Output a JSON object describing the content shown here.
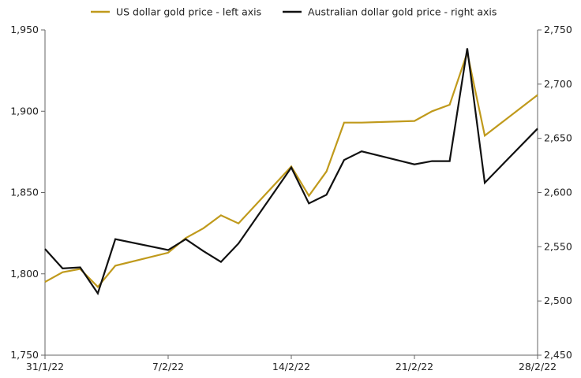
{
  "chart_data": {
    "type": "line",
    "title": "",
    "xlabel": "",
    "ylabel": "",
    "legend_position": "top",
    "grid": false,
    "x": [
      "2022-01-31",
      "2022-02-01",
      "2022-02-02",
      "2022-02-03",
      "2022-02-04",
      "2022-02-07",
      "2022-02-08",
      "2022-02-09",
      "2022-02-10",
      "2022-02-11",
      "2022-02-14",
      "2022-02-15",
      "2022-02-16",
      "2022-02-17",
      "2022-02-18",
      "2022-02-21",
      "2022-02-22",
      "2022-02-23",
      "2022-02-24",
      "2022-02-25",
      "2022-02-28"
    ],
    "x_ticks": [
      {
        "date": "2022-01-31",
        "label": "31/1/22"
      },
      {
        "date": "2022-02-07",
        "label": "7/2/22"
      },
      {
        "date": "2022-02-14",
        "label": "14/2/22"
      },
      {
        "date": "2022-02-21",
        "label": "21/2/22"
      },
      {
        "date": "2022-02-28",
        "label": "28/2/22"
      }
    ],
    "left_axis": {
      "ylim": [
        1750,
        1950
      ],
      "ticks": [
        1750,
        1800,
        1850,
        1900,
        1950
      ],
      "tick_labels": [
        "1,750",
        "1,800",
        "1,850",
        "1,900",
        "1,950"
      ]
    },
    "right_axis": {
      "ylim": [
        2450,
        2750
      ],
      "ticks": [
        2450,
        2500,
        2550,
        2600,
        2650,
        2700,
        2750
      ],
      "tick_labels": [
        "2,450",
        "2,500",
        "2,550",
        "2,600",
        "2,650",
        "2,700",
        "2,750"
      ]
    },
    "series": [
      {
        "name": "US dollar gold price - left axis",
        "axis": "left",
        "color": "#c09a1c",
        "values": [
          1795,
          1801,
          1803,
          1792,
          1805,
          1813,
          1822,
          1828,
          1836,
          1831,
          1866,
          1848,
          1863,
          1893,
          1893,
          1894,
          1900,
          1904,
          1936,
          1885,
          1910
        ]
      },
      {
        "name": "Australian dollar gold price - right axis",
        "axis": "right",
        "color": "#111111",
        "values": [
          2548,
          2530,
          2531,
          2507,
          2557,
          2547,
          2557,
          2546,
          2536,
          2553,
          2623,
          2590,
          2598,
          2630,
          2638,
          2626,
          2629,
          2629,
          2733,
          2609,
          2659
        ]
      }
    ]
  }
}
